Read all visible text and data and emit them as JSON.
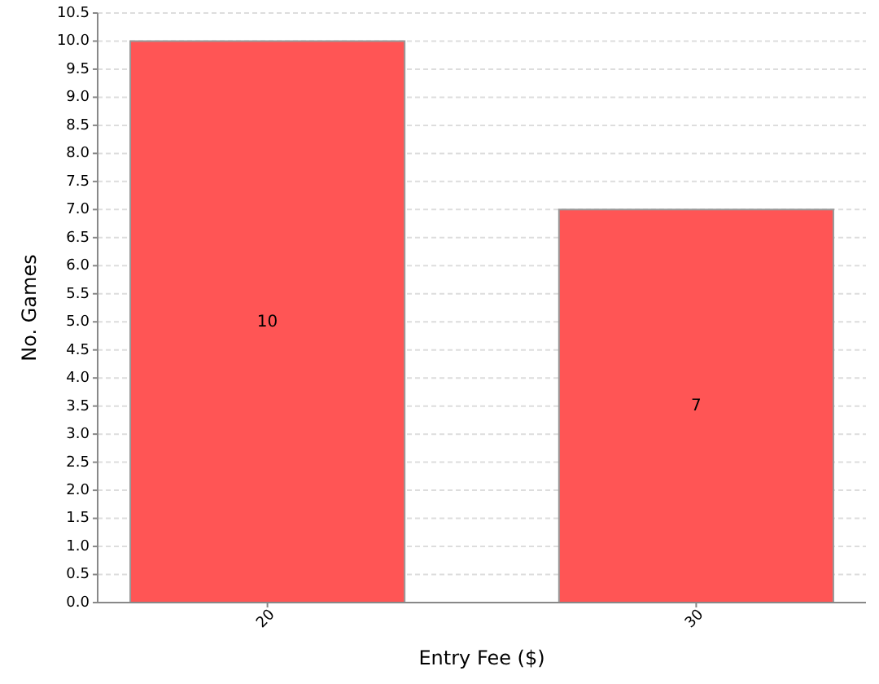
{
  "chart_data": {
    "type": "bar",
    "xlabel": "Entry Fee ($)",
    "ylabel": "No. Games",
    "categories": [
      "20",
      "30"
    ],
    "values": [
      10,
      7
    ],
    "color": "#ff5555",
    "data_labels": true,
    "grid": "y",
    "ylim": [
      0,
      10.5
    ],
    "yticks": [
      {
        "value": 0,
        "label": "0.0"
      },
      {
        "value": 0.5,
        "label": "0.5"
      },
      {
        "value": 1,
        "label": "1.0"
      },
      {
        "value": 1.5,
        "label": "1.5"
      },
      {
        "value": 2,
        "label": "2.0"
      },
      {
        "value": 2.5,
        "label": "2.5"
      },
      {
        "value": 3,
        "label": "3.0"
      },
      {
        "value": 3.5,
        "label": "3.5"
      },
      {
        "value": 4,
        "label": "4.0"
      },
      {
        "value": 4.5,
        "label": "4.5"
      },
      {
        "value": 5,
        "label": "5.0"
      },
      {
        "value": 5.5,
        "label": "5.5"
      },
      {
        "value": 6,
        "label": "6.0"
      },
      {
        "value": 6.5,
        "label": "6.5"
      },
      {
        "value": 7,
        "label": "7.0"
      },
      {
        "value": 7.5,
        "label": "7.5"
      },
      {
        "value": 8,
        "label": "8.0"
      },
      {
        "value": 8.5,
        "label": "8.5"
      },
      {
        "value": 9,
        "label": "9.0"
      },
      {
        "value": 9.5,
        "label": "9.5"
      },
      {
        "value": 10,
        "label": "10.0"
      },
      {
        "value": 10.5,
        "label": "10.5"
      }
    ]
  }
}
